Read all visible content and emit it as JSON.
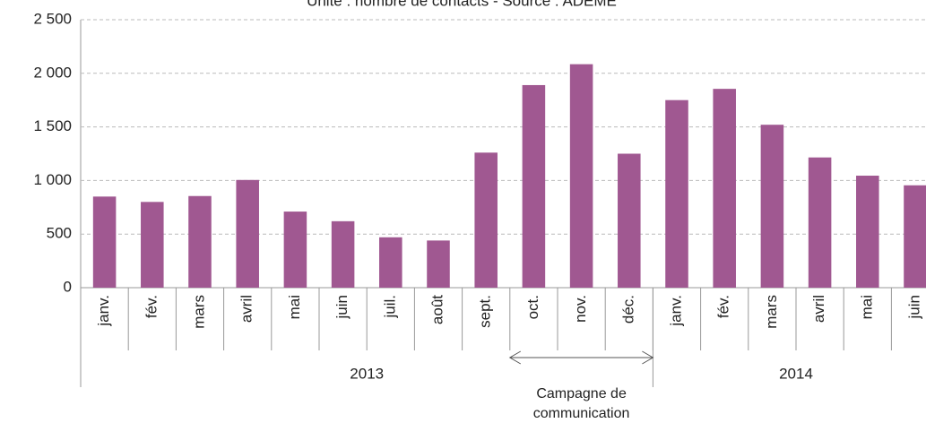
{
  "chart_data": {
    "type": "bar",
    "subtitle": "Unité : nombre de contacts - Source : ADEME",
    "color": "#a05891",
    "groups": [
      {
        "name": "2013",
        "categories": [
          "janv.",
          "fév.",
          "mars",
          "avril",
          "mai",
          "juin",
          "juil.",
          "août",
          "sept.",
          "oct.",
          "nov.",
          "déc."
        ],
        "values": [
          850,
          800,
          855,
          1005,
          710,
          620,
          470,
          440,
          1260,
          1890,
          2085,
          1250
        ]
      },
      {
        "name": "2014",
        "categories": [
          "janv.",
          "fév.",
          "mars",
          "avril",
          "mai",
          "juin"
        ],
        "values": [
          1750,
          1855,
          1520,
          1215,
          1045,
          955
        ]
      }
    ],
    "annotation": [
      "Campagne de",
      "communication"
    ],
    "ylim": [
      0,
      2500
    ],
    "yticks": [
      0,
      500,
      {
        "value": 1000,
        "label": "1 000"
      },
      {
        "value": 1500,
        "label": "1 500"
      },
      {
        "value": 2000,
        "label": "2 000"
      },
      {
        "value": 2500,
        "label": "2 500"
      }
    ],
    "grid": true
  }
}
